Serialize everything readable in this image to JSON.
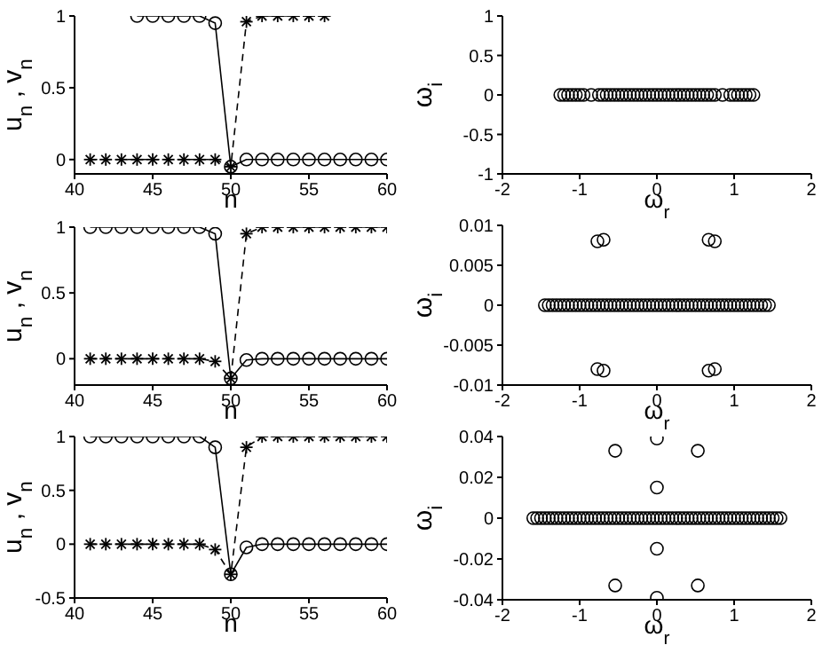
{
  "chart_data": [
    {
      "type": "line",
      "xlabel": "n",
      "ylabel": "u$_{n}$ , v$_{n}$",
      "xlim": [
        40,
        60
      ],
      "xticks": [
        40,
        45,
        50,
        55,
        60
      ],
      "ylim": [
        -0.1,
        1
      ],
      "yticks": [
        0,
        0.5,
        1
      ],
      "series": [
        {
          "color": "#000000",
          "marker": "circle",
          "line_style": "solid",
          "x": [
            44,
            45,
            46,
            47,
            48,
            49,
            50,
            51,
            52,
            53,
            54,
            55,
            56,
            57,
            58,
            59,
            60
          ],
          "values": [
            1,
            1,
            1,
            1,
            1,
            0.95,
            -0.05,
            0,
            0,
            0,
            0,
            0,
            0,
            0,
            0,
            0,
            0
          ]
        },
        {
          "color": "#000000",
          "marker": "cross",
          "line_style": "dashed",
          "x": [
            41,
            42,
            43,
            44,
            45,
            46,
            47,
            48,
            49,
            50,
            51,
            52,
            53,
            54,
            55,
            56
          ],
          "values": [
            0,
            0,
            0,
            0,
            0,
            0,
            0,
            0,
            0,
            -0.05,
            0.96,
            1,
            1,
            1,
            1,
            1
          ]
        }
      ]
    },
    {
      "type": "scatter",
      "xlabel": "ω$_{r}$",
      "ylabel": "ω$_{i}$",
      "xlim": [
        -2,
        2
      ],
      "xticks": [
        -2,
        -1,
        0,
        1,
        2
      ],
      "ylim": [
        -1,
        1
      ],
      "yticks": [
        -1,
        -0.5,
        0,
        0.5,
        1
      ],
      "marker": "circle",
      "series": [
        {
          "color": "#000000",
          "x": [
            -1.25,
            -1.2,
            -1.15,
            -1.1,
            -1.05,
            -1,
            -0.95,
            -0.85,
            -0.75,
            -0.7,
            -0.65,
            -0.6,
            -0.55,
            -0.5,
            -0.45,
            -0.4,
            -0.35,
            -0.3,
            -0.25,
            -0.2,
            -0.15,
            -0.1,
            -0.05,
            0,
            0.05,
            0.1,
            0.15,
            0.2,
            0.25,
            0.3,
            0.35,
            0.4,
            0.45,
            0.5,
            0.55,
            0.6,
            0.65,
            0.7,
            0.75,
            0.85,
            0.95,
            1,
            1.05,
            1.1,
            1.15,
            1.2,
            1.25
          ],
          "values": [
            0,
            0,
            0,
            0,
            0,
            0,
            0,
            0,
            0,
            0,
            0,
            0,
            0,
            0,
            0,
            0,
            0,
            0,
            0,
            0,
            0,
            0,
            0,
            0,
            0,
            0,
            0,
            0,
            0,
            0,
            0,
            0,
            0,
            0,
            0,
            0,
            0,
            0,
            0,
            0,
            0,
            0,
            0,
            0,
            0,
            0,
            0
          ]
        }
      ]
    },
    {
      "type": "line",
      "xlabel": "n",
      "ylabel": "u$_{n}$ , v$_{n}$",
      "xlim": [
        40,
        60
      ],
      "xticks": [
        40,
        45,
        50,
        55,
        60
      ],
      "ylim": [
        -0.2,
        1
      ],
      "yticks": [
        0,
        0.5,
        1
      ],
      "series": [
        {
          "color": "#000000",
          "marker": "circle",
          "line_style": "solid",
          "x": [
            41,
            42,
            43,
            44,
            45,
            46,
            47,
            48,
            49,
            50,
            51,
            52,
            53,
            54,
            55,
            56,
            57,
            58,
            59,
            60
          ],
          "values": [
            1,
            1,
            1,
            1,
            1,
            1,
            1,
            1,
            0.95,
            -0.15,
            -0.01,
            0,
            0,
            0,
            0,
            0,
            0,
            0,
            0,
            0
          ]
        },
        {
          "color": "#000000",
          "marker": "cross",
          "line_style": "dashed",
          "x": [
            41,
            42,
            43,
            44,
            45,
            46,
            47,
            48,
            49,
            50,
            51,
            52,
            53,
            54,
            55,
            56,
            57,
            58,
            59,
            60
          ],
          "values": [
            0,
            0,
            0,
            0,
            0,
            0,
            0,
            0,
            -0.02,
            -0.15,
            0.95,
            1,
            1,
            1,
            1,
            1,
            1,
            1,
            1,
            1
          ]
        }
      ]
    },
    {
      "type": "scatter",
      "xlabel": "ω$_{r}$",
      "ylabel": "ω$_{i}$",
      "xlim": [
        -2,
        2
      ],
      "xticks": [
        -2,
        -1,
        0,
        1,
        2
      ],
      "ylim": [
        -0.01,
        0.01
      ],
      "yticks": [
        -0.01,
        -0.005,
        0,
        0.005,
        0.01
      ],
      "marker": "circle",
      "series": [
        {
          "color": "#000000",
          "x": [
            -1.45,
            -1.4,
            -1.35,
            -1.3,
            -1.25,
            -1.2,
            -1.15,
            -1.1,
            -1.05,
            -1,
            -0.95,
            -0.9,
            -0.85,
            -0.8,
            -0.75,
            -0.7,
            -0.65,
            -0.6,
            -0.55,
            -0.5,
            -0.45,
            -0.4,
            -0.35,
            -0.3,
            -0.25,
            -0.2,
            -0.15,
            -0.1,
            -0.05,
            0,
            0.05,
            0.1,
            0.15,
            0.2,
            0.25,
            0.3,
            0.35,
            0.4,
            0.45,
            0.5,
            0.55,
            0.6,
            0.65,
            0.7,
            0.75,
            0.8,
            0.85,
            0.9,
            0.95,
            1,
            1.05,
            1.1,
            1.15,
            1.2,
            1.25,
            1.3,
            1.35,
            1.4,
            1.45,
            -0.77,
            -0.69,
            0.67,
            0.75,
            -0.77,
            -0.69,
            0.67,
            0.75
          ],
          "values": [
            0,
            0,
            0,
            0,
            0,
            0,
            0,
            0,
            0,
            0,
            0,
            0,
            0,
            0,
            0,
            0,
            0,
            0,
            0,
            0,
            0,
            0,
            0,
            0,
            0,
            0,
            0,
            0,
            0,
            0,
            0,
            0,
            0,
            0,
            0,
            0,
            0,
            0,
            0,
            0,
            0,
            0,
            0,
            0,
            0,
            0,
            0,
            0,
            0,
            0,
            0,
            0,
            0,
            0,
            0,
            0,
            0,
            0,
            0,
            0.008,
            0.0082,
            0.0082,
            0.008,
            -0.008,
            -0.0082,
            -0.0082,
            -0.008
          ]
        }
      ]
    },
    {
      "type": "line",
      "xlabel": "n",
      "ylabel": "u$_{n}$ , v$_{n}$",
      "xlim": [
        40,
        60
      ],
      "xticks": [
        40,
        45,
        50,
        55,
        60
      ],
      "ylim": [
        -0.5,
        1
      ],
      "yticks": [
        -0.5,
        0,
        0.5,
        1
      ],
      "series": [
        {
          "color": "#000000",
          "marker": "circle",
          "line_style": "solid",
          "x": [
            41,
            42,
            43,
            44,
            45,
            46,
            47,
            48,
            49,
            50,
            51,
            52,
            53,
            54,
            55,
            56,
            57,
            58,
            59,
            60
          ],
          "values": [
            1,
            1,
            1,
            1,
            1,
            1,
            1,
            1,
            0.9,
            -0.28,
            -0.03,
            0,
            0,
            0,
            0,
            0,
            0,
            0,
            0,
            0
          ]
        },
        {
          "color": "#000000",
          "marker": "cross",
          "line_style": "dashed",
          "x": [
            41,
            42,
            43,
            44,
            45,
            46,
            47,
            48,
            49,
            50,
            51,
            52,
            53,
            54,
            55,
            56,
            57,
            58,
            59,
            60
          ],
          "values": [
            0,
            0,
            0,
            0,
            0,
            0,
            0,
            0,
            -0.05,
            -0.28,
            0.9,
            1,
            1,
            1,
            1,
            1,
            1,
            1,
            1,
            1
          ]
        }
      ]
    },
    {
      "type": "scatter",
      "xlabel": "ω$_{r}$",
      "ylabel": "ω$_{i}$",
      "xlim": [
        -2,
        2
      ],
      "xticks": [
        -2,
        -1,
        0,
        1,
        2
      ],
      "ylim": [
        -0.04,
        0.04
      ],
      "yticks": [
        -0.04,
        -0.02,
        0,
        0.02,
        0.04
      ],
      "marker": "circle",
      "series": [
        {
          "color": "#000000",
          "x": [
            -1.6,
            -1.55,
            -1.5,
            -1.45,
            -1.4,
            -1.35,
            -1.3,
            -1.25,
            -1.2,
            -1.15,
            -1.1,
            -1.05,
            -1,
            -0.95,
            -0.9,
            -0.85,
            -0.8,
            -0.75,
            -0.7,
            -0.65,
            -0.6,
            -0.55,
            -0.5,
            -0.45,
            -0.4,
            -0.35,
            -0.3,
            -0.25,
            -0.2,
            -0.15,
            -0.1,
            -0.05,
            0,
            0.05,
            0.1,
            0.15,
            0.2,
            0.25,
            0.3,
            0.35,
            0.4,
            0.45,
            0.5,
            0.55,
            0.6,
            0.65,
            0.7,
            0.75,
            0.8,
            0.85,
            0.9,
            0.95,
            1,
            1.05,
            1.1,
            1.15,
            1.2,
            1.25,
            1.3,
            1.35,
            1.4,
            1.45,
            1.5,
            1.55,
            1.6,
            0,
            -0.54,
            0.53,
            0,
            0,
            -0.54,
            0.53,
            0
          ],
          "values": [
            0,
            0,
            0,
            0,
            0,
            0,
            0,
            0,
            0,
            0,
            0,
            0,
            0,
            0,
            0,
            0,
            0,
            0,
            0,
            0,
            0,
            0,
            0,
            0,
            0,
            0,
            0,
            0,
            0,
            0,
            0,
            0,
            0,
            0,
            0,
            0,
            0,
            0,
            0,
            0,
            0,
            0,
            0,
            0,
            0,
            0,
            0,
            0,
            0,
            0,
            0,
            0,
            0,
            0,
            0,
            0,
            0,
            0,
            0,
            0,
            0,
            0,
            0,
            0,
            0,
            0.039,
            0.033,
            0.033,
            0.015,
            -0.015,
            -0.033,
            -0.033,
            -0.039
          ]
        }
      ]
    }
  ]
}
